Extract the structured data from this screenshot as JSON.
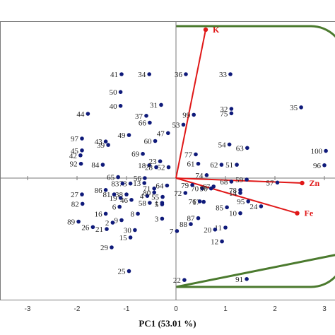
{
  "colors": {
    "points": "#0f1a7a",
    "vectors": "#e01818",
    "region": "#4b7a2e",
    "axes": "#7a7a7a",
    "frame": "#7a7a7a"
  },
  "chart_data": {
    "type": "scatter",
    "title": "",
    "xlabel": "PC1 (53.01 %)",
    "ylabel": "",
    "xlim": [
      -3.5,
      3.15
    ],
    "ylim": [
      -2.4,
      3.3
    ],
    "xticks": [
      "-3",
      "-2",
      "-1",
      "0",
      "1",
      "2",
      "3"
    ],
    "grid": false,
    "points": [
      {
        "label": "1",
        "x": -0.28,
        "y": -0.5
      },
      {
        "label": "2",
        "x": -1.28,
        "y": -0.9
      },
      {
        "label": "3",
        "x": -0.28,
        "y": -0.82
      },
      {
        "label": "4",
        "x": -0.58,
        "y": -0.36
      },
      {
        "label": "5",
        "x": -0.28,
        "y": -0.53
      },
      {
        "label": "6",
        "x": -1.14,
        "y": -0.58
      },
      {
        "label": "7",
        "x": 0.02,
        "y": -1.07
      },
      {
        "label": "8",
        "x": -0.77,
        "y": -0.72
      },
      {
        "label": "9",
        "x": -1.1,
        "y": -0.85
      },
      {
        "label": "10",
        "x": 1.3,
        "y": -0.71
      },
      {
        "label": "11",
        "x": 1.0,
        "y": -1.0
      },
      {
        "label": "12",
        "x": 0.93,
        "y": -1.28
      },
      {
        "label": "13",
        "x": -0.64,
        "y": -0.1
      },
      {
        "label": "14",
        "x": 1.3,
        "y": -0.3
      },
      {
        "label": "15",
        "x": -0.92,
        "y": -1.2
      },
      {
        "label": "16",
        "x": -1.42,
        "y": -0.72
      },
      {
        "label": "17",
        "x": 0.56,
        "y": -0.48
      },
      {
        "label": "18",
        "x": -0.54,
        "y": 0.26
      },
      {
        "label": "19",
        "x": -1.12,
        "y": -0.4
      },
      {
        "label": "20",
        "x": 0.79,
        "y": -1.04
      },
      {
        "label": "21",
        "x": -1.4,
        "y": -1.03
      },
      {
        "label": "22",
        "x": 0.17,
        "y": -2.06
      },
      {
        "label": "23",
        "x": -0.32,
        "y": 0.34
      },
      {
        "label": "24",
        "x": 1.72,
        "y": -0.57
      },
      {
        "label": "25",
        "x": -0.95,
        "y": -1.88
      },
      {
        "label": "26",
        "x": -1.68,
        "y": -0.99
      },
      {
        "label": "27",
        "x": -1.9,
        "y": -0.33
      },
      {
        "label": "28",
        "x": -0.4,
        "y": 0.22
      },
      {
        "label": "29",
        "x": -1.3,
        "y": -1.4
      },
      {
        "label": "30",
        "x": -0.83,
        "y": -1.05
      },
      {
        "label": "31",
        "x": -0.3,
        "y": 1.48
      },
      {
        "label": "32",
        "x": 1.12,
        "y": 1.4
      },
      {
        "label": "33",
        "x": 1.1,
        "y": 2.1
      },
      {
        "label": "34",
        "x": -0.54,
        "y": 2.1
      },
      {
        "label": "35",
        "x": 2.53,
        "y": 1.43
      },
      {
        "label": "36",
        "x": 0.2,
        "y": 2.1
      },
      {
        "label": "37",
        "x": -0.6,
        "y": 1.26
      },
      {
        "label": "38",
        "x": -1.0,
        "y": -0.33
      },
      {
        "label": "39",
        "x": -1.37,
        "y": 0.67
      },
      {
        "label": "40",
        "x": -1.12,
        "y": 1.46
      },
      {
        "label": "41",
        "x": -1.1,
        "y": 2.1
      },
      {
        "label": "42",
        "x": -1.93,
        "y": 0.46
      },
      {
        "label": "43",
        "x": -1.42,
        "y": 0.74
      },
      {
        "label": "44",
        "x": -1.78,
        "y": 1.3
      },
      {
        "label": "45",
        "x": -1.9,
        "y": 0.56
      },
      {
        "label": "46",
        "x": -0.9,
        "y": -0.44
      },
      {
        "label": "47",
        "x": -0.16,
        "y": 0.91
      },
      {
        "label": "49",
        "x": -0.95,
        "y": 0.87
      },
      {
        "label": "50",
        "x": -1.12,
        "y": 1.74
      },
      {
        "label": "51",
        "x": 1.23,
        "y": 0.27
      },
      {
        "label": "52",
        "x": -0.15,
        "y": 0.22
      },
      {
        "label": "53",
        "x": 0.15,
        "y": 1.08
      },
      {
        "label": "54",
        "x": 1.08,
        "y": 0.68
      },
      {
        "label": "55",
        "x": -0.27,
        "y": -0.38
      },
      {
        "label": "56",
        "x": -0.63,
        "y": 0.0
      },
      {
        "label": "57",
        "x": 2.05,
        "y": -0.09
      },
      {
        "label": "58",
        "x": -0.53,
        "y": -0.5
      },
      {
        "label": "59",
        "x": 1.43,
        "y": -0.03
      },
      {
        "label": "60",
        "x": -0.42,
        "y": 0.75
      },
      {
        "label": "61",
        "x": 0.45,
        "y": 0.29
      },
      {
        "label": "62",
        "x": 0.92,
        "y": 0.27
      },
      {
        "label": "63",
        "x": 1.44,
        "y": 0.61
      },
      {
        "label": "64",
        "x": -0.18,
        "y": -0.15
      },
      {
        "label": "65",
        "x": -1.17,
        "y": 0.02
      },
      {
        "label": "66",
        "x": -0.53,
        "y": 1.12
      },
      {
        "label": "67",
        "x": 0.76,
        "y": -0.17
      },
      {
        "label": "68",
        "x": 1.12,
        "y": -0.07
      },
      {
        "label": "69",
        "x": -0.67,
        "y": 0.49
      },
      {
        "label": "70",
        "x": 0.53,
        "y": -0.21
      },
      {
        "label": "71",
        "x": -0.44,
        "y": -0.21
      },
      {
        "label": "72",
        "x": 0.19,
        "y": -0.3
      },
      {
        "label": "73",
        "x": -0.92,
        "y": -0.11
      },
      {
        "label": "74",
        "x": 0.62,
        "y": 0.06
      },
      {
        "label": "75",
        "x": 1.12,
        "y": 1.31
      },
      {
        "label": "76",
        "x": 0.48,
        "y": -0.47
      },
      {
        "label": "77",
        "x": 0.4,
        "y": 0.48
      },
      {
        "label": "78",
        "x": 1.3,
        "y": -0.24
      },
      {
        "label": "79",
        "x": 0.33,
        "y": -0.14
      },
      {
        "label": "80",
        "x": -0.44,
        "y": -0.29
      },
      {
        "label": "81",
        "x": -1.25,
        "y": -0.33
      },
      {
        "label": "82",
        "x": -1.89,
        "y": -0.52
      },
      {
        "label": "83",
        "x": -1.08,
        "y": -0.11
      },
      {
        "label": "84",
        "x": -1.48,
        "y": 0.27
      },
      {
        "label": "85",
        "x": 1.03,
        "y": -0.59
      },
      {
        "label": "86",
        "x": -1.42,
        "y": -0.24
      },
      {
        "label": "87",
        "x": 0.45,
        "y": -0.81
      },
      {
        "label": "88",
        "x": 0.3,
        "y": -0.93
      },
      {
        "label": "89",
        "x": -1.97,
        "y": -0.88
      },
      {
        "label": "90",
        "x": 0.71,
        "y": -0.21
      },
      {
        "label": "91",
        "x": 1.43,
        "y": -2.04
      },
      {
        "label": "92",
        "x": -1.92,
        "y": 0.29
      },
      {
        "label": "95",
        "x": 1.46,
        "y": -0.47
      },
      {
        "label": "96",
        "x": 3.0,
        "y": 0.26
      },
      {
        "label": "97",
        "x": -1.9,
        "y": 0.8
      },
      {
        "label": "99",
        "x": 0.36,
        "y": 1.28
      },
      {
        "label": "100",
        "x": 3.03,
        "y": 0.55
      }
    ],
    "vectors": [
      {
        "label": "K",
        "x": 0.6,
        "y": 3.0
      },
      {
        "label": "Zn",
        "x": 2.55,
        "y": -0.1
      },
      {
        "label": "Fe",
        "x": 2.45,
        "y": -0.71
      }
    ]
  }
}
